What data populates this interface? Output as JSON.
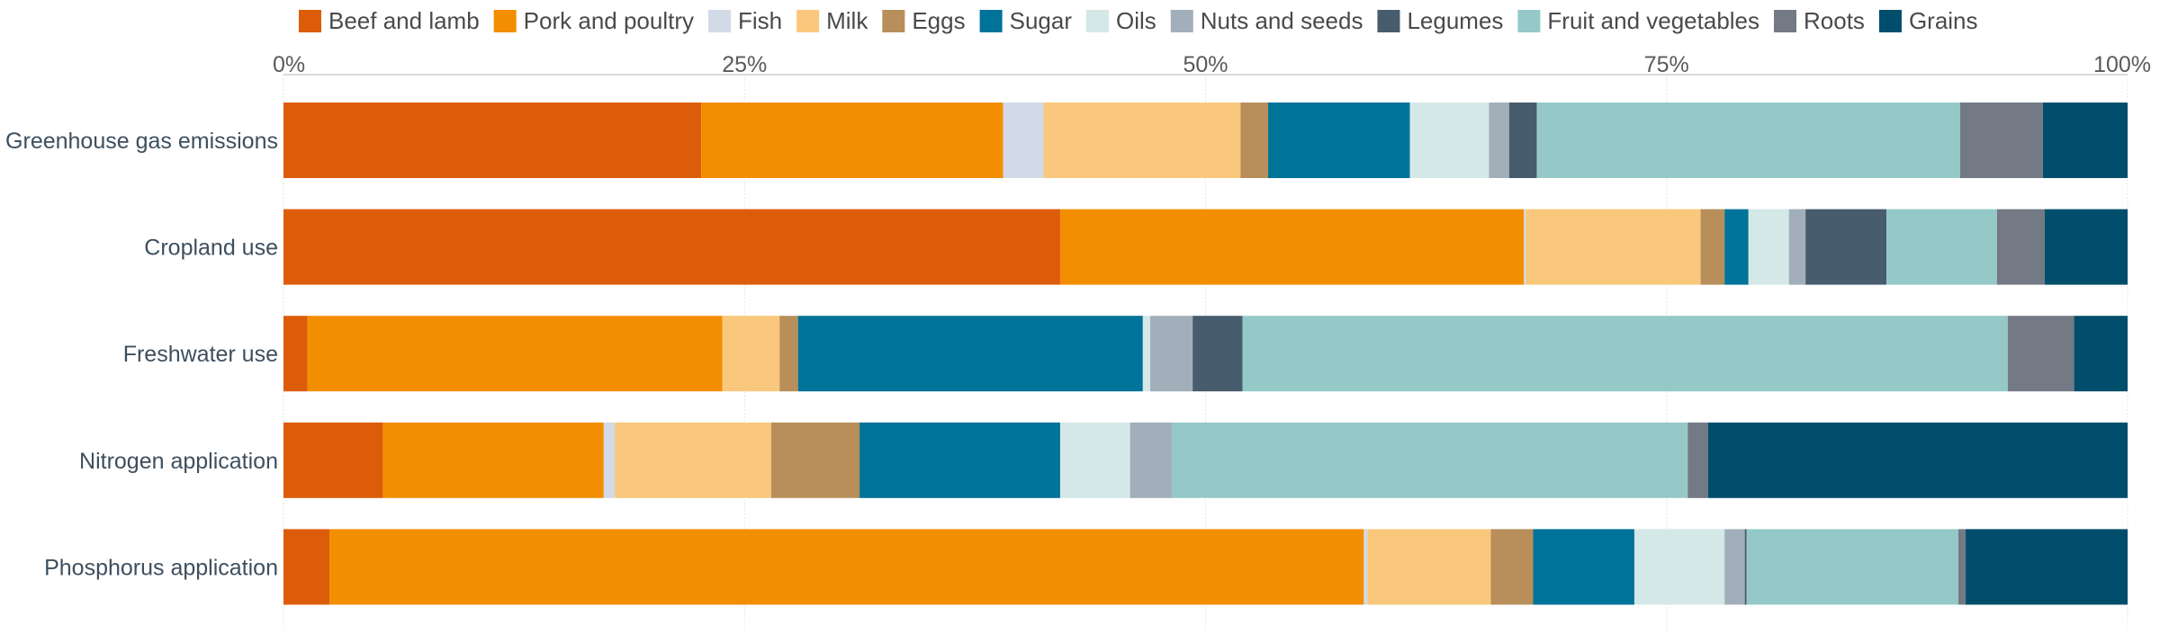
{
  "chart_data": {
    "type": "bar",
    "orientation": "horizontal",
    "stacked": true,
    "normalized": true,
    "title": "",
    "xlabel": "",
    "ylabel": "",
    "xlim": [
      0,
      100
    ],
    "x_ticks": [
      0,
      25,
      50,
      75,
      100
    ],
    "x_tick_labels": [
      "0%",
      "25%",
      "50%",
      "75%",
      "100%"
    ],
    "x_axis_position": "top",
    "grid": true,
    "legend_position": "top",
    "categories": [
      "Greenhouse gas emissions",
      "Cropland use",
      "Freshwater use",
      "Nitrogen application",
      "Phosphorus application"
    ],
    "series": [
      {
        "name": "Beef and lamb",
        "color": "#dd5c0a",
        "values": [
          22.7,
          42.2,
          1.3,
          5.4,
          2.5
        ]
      },
      {
        "name": "Pork and poultry",
        "color": "#f28e00",
        "values": [
          16.4,
          25.2,
          22.5,
          12.0,
          56.2
        ]
      },
      {
        "name": "Fish",
        "color": "#d1dae6",
        "values": [
          2.2,
          0.1,
          0.0,
          0.6,
          0.2
        ]
      },
      {
        "name": "Milk",
        "color": "#f9c87c",
        "values": [
          10.7,
          9.5,
          3.1,
          8.5,
          6.7
        ]
      },
      {
        "name": "Eggs",
        "color": "#b88f5a",
        "values": [
          1.5,
          1.3,
          1.0,
          4.8,
          2.3
        ]
      },
      {
        "name": "Sugar",
        "color": "#007398",
        "values": [
          7.7,
          1.3,
          18.7,
          10.9,
          5.5
        ]
      },
      {
        "name": "Oils",
        "color": "#d3e8e7",
        "values": [
          4.3,
          2.2,
          0.4,
          3.8,
          4.9
        ]
      },
      {
        "name": "Nuts and seeds",
        "color": "#a2afbb",
        "values": [
          1.1,
          0.9,
          2.3,
          2.3,
          1.1
        ]
      },
      {
        "name": "Legumes",
        "color": "#475c6d",
        "values": [
          1.5,
          4.4,
          2.7,
          0.0,
          0.1
        ]
      },
      {
        "name": "Fruit and vegetables",
        "color": "#95c9c8",
        "values": [
          23.0,
          6.0,
          41.5,
          28.0,
          11.5
        ]
      },
      {
        "name": "Roots",
        "color": "#737a85",
        "values": [
          4.5,
          2.6,
          3.6,
          1.1,
          0.4
        ]
      },
      {
        "name": "Grains",
        "color": "#004e6b",
        "values": [
          4.6,
          4.5,
          2.9,
          22.8,
          8.8
        ]
      }
    ]
  }
}
